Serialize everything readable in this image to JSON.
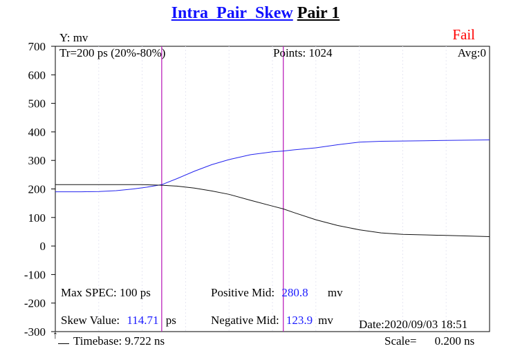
{
  "header": {
    "title_main": "Intra_Pair_Skew",
    "title_pair": "Pair 1",
    "status": "Fail"
  },
  "info": {
    "y_unit": "Y: mv",
    "tr": "Tr=200  ps (20%-80%)",
    "points_label": "Points:",
    "points_value": "1024",
    "avg": "Avg:0",
    "max_spec": "Max SPEC: 100 ps",
    "skew_label": "Skew Value:",
    "skew_value": "114.71",
    "skew_unit": "ps",
    "pos_mid_label": "Positive Mid:",
    "pos_mid_value": "280.8",
    "pos_mid_unit": "mv",
    "neg_mid_label": "Negative Mid:",
    "neg_mid_value": "123.9",
    "neg_mid_unit": "mv",
    "date": "Date:2020/09/03 18:51",
    "timebase": "Timebase: 9.722  ns",
    "scale_label": "Scale=",
    "scale_value": "0.200 ns",
    "corner_marker": "↑"
  },
  "colors": {
    "positive": "#2222ee",
    "negative": "#111111",
    "cursor": "#bb22bb",
    "status": "#ff0000"
  },
  "chart_data": {
    "type": "line",
    "title": "Intra_Pair_Skew  Pair 1",
    "ylabel": "Y: mv",
    "xlabel": "Timebase: 9.722 ns, Scale= 0.200 ns",
    "ylim": [
      -300,
      700
    ],
    "xlim": [
      0,
      2.0
    ],
    "yticks": [
      "700",
      "600",
      "500",
      "400",
      "300",
      "200",
      "100",
      "0",
      "-100",
      "-200",
      "-300"
    ],
    "x_divisions": 10,
    "cursors_x": [
      0.49,
      1.05
    ],
    "series": [
      {
        "name": "Positive",
        "color": "#2222ee",
        "x": [
          0,
          0.12,
          0.2,
          0.28,
          0.36,
          0.42,
          0.49,
          0.56,
          0.64,
          0.72,
          0.8,
          0.9,
          1.0,
          1.05,
          1.1,
          1.2,
          1.3,
          1.4,
          1.5,
          1.6,
          1.7,
          1.8,
          1.9,
          2.0
        ],
        "values": [
          190,
          190,
          191,
          194,
          200,
          206,
          215,
          236,
          262,
          285,
          303,
          320,
          330,
          333,
          337,
          344,
          355,
          364,
          367,
          368,
          369,
          370,
          371,
          372
        ]
      },
      {
        "name": "Negative",
        "color": "#111111",
        "x": [
          0,
          0.2,
          0.4,
          0.49,
          0.56,
          0.64,
          0.72,
          0.8,
          0.9,
          1.0,
          1.05,
          1.1,
          1.2,
          1.3,
          1.4,
          1.5,
          1.6,
          1.7,
          1.8,
          1.9,
          2.0
        ],
        "values": [
          215,
          215,
          215,
          213,
          210,
          203,
          193,
          181,
          160,
          140,
          130,
          117,
          92,
          72,
          57,
          46,
          41,
          39,
          37,
          35,
          33
        ]
      }
    ]
  }
}
